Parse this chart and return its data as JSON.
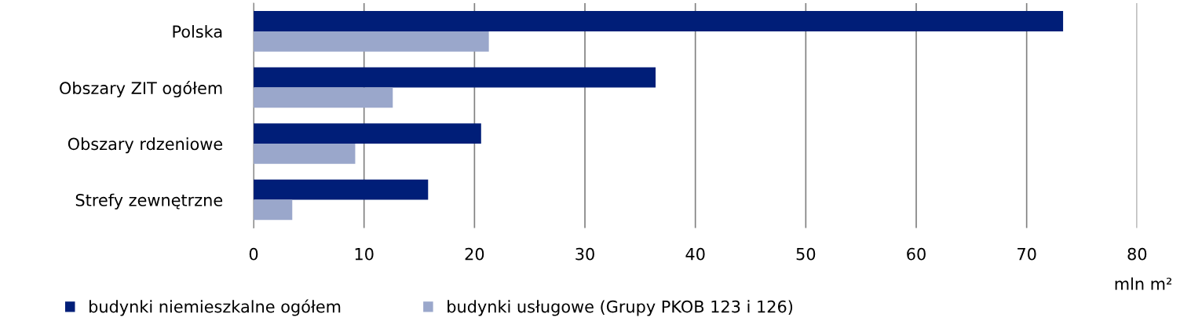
{
  "chart_data": {
    "type": "bar",
    "orientation": "horizontal",
    "categories": [
      "Polska",
      "Obszary ZIT ogółem",
      "Obszary rdzeniowe",
      "Strefy zewnętrzne"
    ],
    "series": [
      {
        "name": "budynki niemieszkalne ogółem",
        "color": "#001e78",
        "values": [
          73.3,
          36.4,
          20.6,
          15.8
        ]
      },
      {
        "name": "budynki usługowe (Grupy PKOB 123 i 126)",
        "color": "#9aa7cb",
        "values": [
          21.3,
          12.6,
          9.2,
          3.5
        ]
      }
    ],
    "xlabel": "mln m²",
    "xlim": [
      0,
      80
    ],
    "xticks": [
      0,
      10,
      20,
      30,
      40,
      50,
      60,
      70,
      80
    ],
    "grid": "x",
    "legend": "bottom"
  }
}
